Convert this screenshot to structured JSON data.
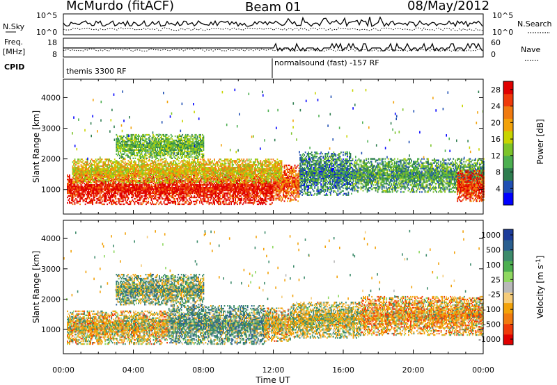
{
  "header": {
    "station": "McMurdo (fitACF)",
    "beam": "Beam 01",
    "date": "08/May/2012"
  },
  "left_labels": {
    "nsky": "N.Sky",
    "freq": "Freq.",
    "freq_unit": "[MHz]",
    "cpid": "CPID"
  },
  "right_labels": {
    "nsearch": "N.Search",
    "nave": "Nave"
  },
  "noise_ticks": {
    "left_top": "10^5",
    "left_bottom": "10^0",
    "right_top": "10^5",
    "right_bottom": "10^0"
  },
  "freq_ticks": {
    "left_top": "18",
    "left_bottom": "8",
    "right_top": "60",
    "right_bottom": "0"
  },
  "cpid_texts": {
    "first": "themis 3300 RF",
    "second": "normalsound (fast) -157 RF"
  },
  "x_axis": {
    "ticks": [
      "00:00",
      "04:00",
      "08:00",
      "12:00",
      "16:00",
      "20:00",
      "00:00"
    ],
    "label": "Time UT"
  },
  "colors": {
    "power_scale": [
      "#0000ff",
      "#1f4fb3",
      "#2e7d4f",
      "#4caf50",
      "#7cc42a",
      "#c8d400",
      "#f2a20a",
      "#f07a10",
      "#ef3a0a",
      "#e00000"
    ],
    "velocity_scale": [
      "#e00000",
      "#ef3a0a",
      "#f07a10",
      "#f2a20a",
      "#f5cc7a",
      "#b9b9b9",
      "#8fd860",
      "#4caf50",
      "#3d8b6b",
      "#2a5f8f",
      "#1c3c9a"
    ]
  },
  "chart_data": [
    {
      "type": "heatmap",
      "title": "Power",
      "ylabel": "Slant Range [km]",
      "xlabel": "",
      "x_range_hours": [
        0,
        24
      ],
      "y_range_km": [
        200,
        4600
      ],
      "y_ticks": [
        1000,
        2000,
        3000,
        4000
      ],
      "colorbar_label": "Power [dB]",
      "colorbar_ticks": [
        4,
        8,
        12,
        16,
        20,
        24,
        28
      ],
      "colorbar_range": [
        0,
        30
      ],
      "regions": [
        {
          "t0": 0.2,
          "t1": 12.0,
          "r0": 500,
          "r1": 1500,
          "value": 28
        },
        {
          "t0": 12.0,
          "t1": 13.5,
          "r0": 600,
          "r1": 1800,
          "value": 24
        },
        {
          "t0": 0.5,
          "t1": 12.5,
          "r0": 1200,
          "r1": 2000,
          "value": 18
        },
        {
          "t0": 3.0,
          "t1": 8.0,
          "r0": 2000,
          "r1": 2800,
          "value": 12
        },
        {
          "t0": 13.5,
          "t1": 16.5,
          "r0": 800,
          "r1": 2200,
          "value": 8
        },
        {
          "t0": 16.5,
          "t1": 24.0,
          "r0": 900,
          "r1": 2000,
          "value": 10
        },
        {
          "t0": 22.5,
          "t1": 24.0,
          "r0": 600,
          "r1": 1600,
          "value": 26
        }
      ]
    },
    {
      "type": "heatmap",
      "title": "Velocity",
      "ylabel": "Slant Range [km]",
      "xlabel": "Time UT",
      "x_range_hours": [
        0,
        24
      ],
      "y_range_km": [
        200,
        4600
      ],
      "y_ticks": [
        1000,
        2000,
        3000,
        4000
      ],
      "colorbar_label": "Velocity [m s^-1]",
      "colorbar_ticks": [
        1000,
        500,
        100,
        25,
        -25,
        -100,
        -500,
        -1000
      ],
      "colorbar_range": [
        -1250,
        1250
      ],
      "regions": [
        {
          "t0": 0.2,
          "t1": 6.0,
          "r0": 500,
          "r1": 1600,
          "value": -150
        },
        {
          "t0": 6.0,
          "t1": 11.5,
          "r0": 500,
          "r1": 1800,
          "value": 250
        },
        {
          "t0": 11.5,
          "t1": 13.0,
          "r0": 600,
          "r1": 1700,
          "value": -120
        },
        {
          "t0": 3.0,
          "t1": 8.0,
          "r0": 1800,
          "r1": 2800,
          "value": 150
        },
        {
          "t0": 13.0,
          "t1": 17.0,
          "r0": 700,
          "r1": 1900,
          "value": -60
        },
        {
          "t0": 17.0,
          "t1": 24.0,
          "r0": 800,
          "r1": 2100,
          "value": -250
        }
      ]
    }
  ]
}
